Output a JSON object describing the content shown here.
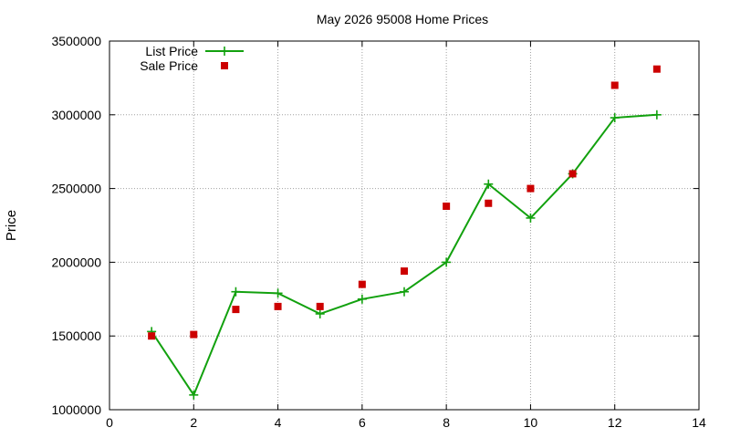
{
  "chart_data": {
    "type": "line",
    "title": "May 2026 95008 Home Prices",
    "xlabel": "",
    "ylabel": "Price",
    "xlim": [
      0,
      14
    ],
    "ylim": [
      1000000,
      3500000
    ],
    "xticks": [
      0,
      2,
      4,
      6,
      8,
      10,
      12,
      14
    ],
    "yticks": [
      1000000,
      1500000,
      2000000,
      2500000,
      3000000,
      3500000
    ],
    "grid": true,
    "legend_position": "top-left",
    "series": [
      {
        "name": "List Price",
        "style": "line-with-plus-markers",
        "color": "#12a10e",
        "points": [
          [
            1,
            1530000
          ],
          [
            2,
            1100000
          ],
          [
            3,
            1800000
          ],
          [
            4,
            1790000
          ],
          [
            5,
            1650000
          ],
          [
            6,
            1750000
          ],
          [
            7,
            1800000
          ],
          [
            8,
            2000000
          ],
          [
            9,
            2530000
          ],
          [
            10,
            2300000
          ],
          [
            11,
            2600000
          ],
          [
            12,
            2980000
          ],
          [
            13,
            3000000
          ]
        ]
      },
      {
        "name": "Sale Price",
        "style": "square-markers",
        "color": "#cc0000",
        "points": [
          [
            1,
            1500000
          ],
          [
            2,
            1510000
          ],
          [
            3,
            1680000
          ],
          [
            4,
            1700000
          ],
          [
            5,
            1700000
          ],
          [
            6,
            1850000
          ],
          [
            7,
            1940000
          ],
          [
            8,
            2380000
          ],
          [
            9,
            2400000
          ],
          [
            10,
            2500000
          ],
          [
            11,
            2600000
          ],
          [
            12,
            3200000
          ],
          [
            13,
            3310000
          ]
        ]
      }
    ]
  }
}
